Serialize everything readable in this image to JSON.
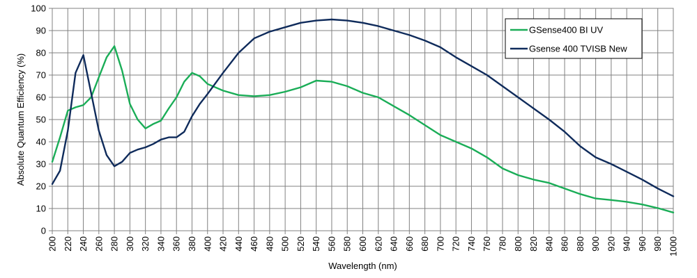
{
  "chart_data": {
    "type": "line",
    "xlabel": "Wavelength (nm)",
    "ylabel": "Absolute Quantum Efficiency (%)",
    "xlim": [
      200,
      1000
    ],
    "ylim": [
      0,
      100
    ],
    "x_ticks": [
      200,
      220,
      240,
      260,
      280,
      300,
      320,
      340,
      360,
      380,
      400,
      420,
      440,
      460,
      480,
      500,
      520,
      540,
      560,
      580,
      600,
      620,
      640,
      660,
      680,
      700,
      720,
      740,
      760,
      780,
      800,
      820,
      840,
      860,
      880,
      900,
      920,
      940,
      960,
      980,
      1000
    ],
    "y_ticks": [
      0,
      10,
      20,
      30,
      40,
      50,
      60,
      70,
      80,
      90,
      100
    ],
    "grid": true,
    "legend_position": "top-right",
    "series": [
      {
        "name": "GSense400 BI UV",
        "color": "#1aad57",
        "points": [
          [
            200,
            31
          ],
          [
            210,
            42
          ],
          [
            220,
            54
          ],
          [
            230,
            55.5
          ],
          [
            240,
            56.5
          ],
          [
            250,
            60
          ],
          [
            260,
            69
          ],
          [
            270,
            78
          ],
          [
            280,
            83
          ],
          [
            290,
            72
          ],
          [
            300,
            57
          ],
          [
            310,
            50
          ],
          [
            320,
            46
          ],
          [
            330,
            48
          ],
          [
            340,
            49.5
          ],
          [
            350,
            55
          ],
          [
            360,
            60
          ],
          [
            370,
            67
          ],
          [
            380,
            71
          ],
          [
            390,
            69.5
          ],
          [
            400,
            66
          ],
          [
            420,
            63
          ],
          [
            440,
            61
          ],
          [
            460,
            60.5
          ],
          [
            480,
            61
          ],
          [
            500,
            62.5
          ],
          [
            520,
            64.5
          ],
          [
            540,
            67.5
          ],
          [
            560,
            67
          ],
          [
            580,
            65
          ],
          [
            600,
            62
          ],
          [
            620,
            60
          ],
          [
            640,
            56
          ],
          [
            660,
            52
          ],
          [
            680,
            47.5
          ],
          [
            700,
            43
          ],
          [
            720,
            40
          ],
          [
            740,
            37
          ],
          [
            760,
            33
          ],
          [
            780,
            28
          ],
          [
            800,
            25
          ],
          [
            820,
            23
          ],
          [
            840,
            21.5
          ],
          [
            860,
            19
          ],
          [
            880,
            16.5
          ],
          [
            900,
            14.5
          ],
          [
            920,
            13.8
          ],
          [
            940,
            13
          ],
          [
            960,
            11.8
          ],
          [
            980,
            10.2
          ],
          [
            1000,
            8.2
          ]
        ]
      },
      {
        "name": "Gsense 400 TVISB New",
        "color": "#0f2b5b",
        "points": [
          [
            200,
            21
          ],
          [
            210,
            27
          ],
          [
            220,
            45
          ],
          [
            230,
            71
          ],
          [
            240,
            79
          ],
          [
            250,
            62
          ],
          [
            260,
            45
          ],
          [
            270,
            34
          ],
          [
            280,
            29
          ],
          [
            290,
            31
          ],
          [
            300,
            35
          ],
          [
            310,
            36.5
          ],
          [
            320,
            37.5
          ],
          [
            330,
            39
          ],
          [
            340,
            41
          ],
          [
            350,
            42
          ],
          [
            360,
            42
          ],
          [
            370,
            44.5
          ],
          [
            380,
            51.5
          ],
          [
            390,
            57
          ],
          [
            400,
            61.5
          ],
          [
            420,
            71
          ],
          [
            440,
            80
          ],
          [
            460,
            86.5
          ],
          [
            480,
            89.5
          ],
          [
            500,
            91.5
          ],
          [
            520,
            93.5
          ],
          [
            540,
            94.5
          ],
          [
            560,
            95
          ],
          [
            580,
            94.5
          ],
          [
            600,
            93.5
          ],
          [
            620,
            92
          ],
          [
            640,
            90
          ],
          [
            660,
            88
          ],
          [
            680,
            85.5
          ],
          [
            700,
            82.5
          ],
          [
            720,
            78
          ],
          [
            740,
            74
          ],
          [
            760,
            70
          ],
          [
            780,
            65
          ],
          [
            800,
            60
          ],
          [
            820,
            55
          ],
          [
            840,
            50
          ],
          [
            860,
            44.5
          ],
          [
            880,
            38
          ],
          [
            900,
            33
          ],
          [
            920,
            30
          ],
          [
            940,
            26.5
          ],
          [
            960,
            23
          ],
          [
            980,
            19
          ],
          [
            1000,
            15.5
          ]
        ]
      }
    ]
  }
}
